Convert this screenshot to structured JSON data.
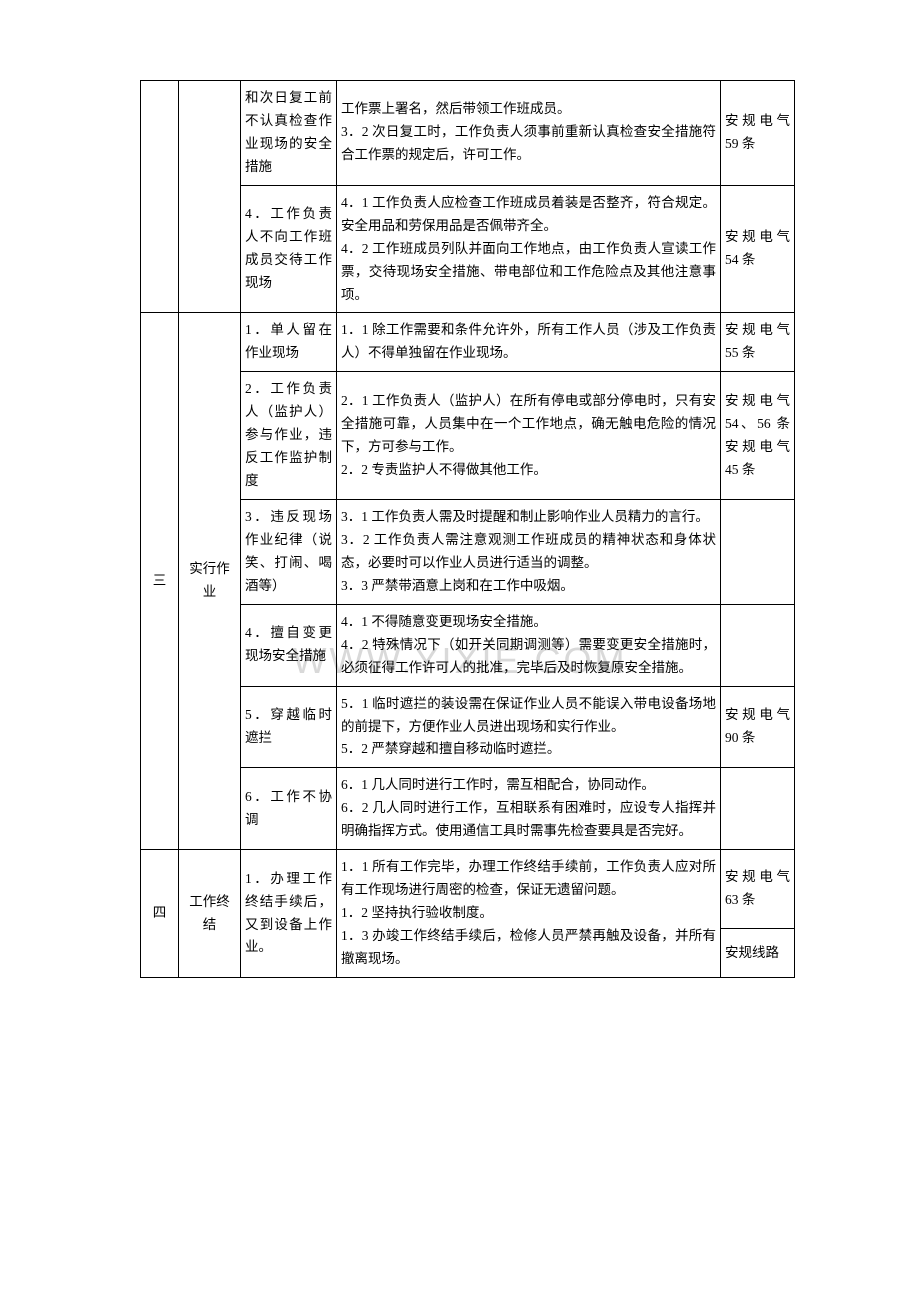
{
  "table": {
    "columns": {
      "col1_width": 38,
      "col2_width": 62,
      "col3_width": 96,
      "col5_width": 74
    },
    "border_color": "#000000",
    "font_family": "SimSun",
    "font_size": 13.5,
    "text_color": "#000000",
    "background_color": "#ffffff",
    "rows": [
      {
        "col1": "",
        "col2": "",
        "col3": "和次日复工前不认真检查作业现场的安全措施",
        "col4": "工作票上署名，然后带领工作班成员。\n3．2 次日复工时，工作负责人须事前重新认真检查安全措施符合工作票的规定后，许可工作。",
        "col5": "安规电气59 条"
      },
      {
        "col1": "",
        "col2": "",
        "col3": "4．工作负责人不向工作班成员交待工作现场",
        "col4": "4．1 工作负责人应检查工作班成员着装是否整齐，符合规定。安全用品和劳保用品是否佩带齐全。\n4．2 工作班成员列队并面向工作地点，由工作负责人宣读工作票，交待现场安全措施、带电部位和工作危险点及其他注意事项。",
        "col5": "安规电气54 条"
      },
      {
        "col1": "三",
        "col2": "实行作业",
        "col3": "1．单人留在作业现场",
        "col4": "1．1 除工作需要和条件允许外，所有工作人员（涉及工作负责人）不得单独留在作业现场。",
        "col5": "安规电气55 条"
      },
      {
        "col1": "",
        "col2": "",
        "col3": "2．工作负责人（监护人）参与作业，违反工作监护制度",
        "col4": "2．1 工作负责人（监护人）在所有停电或部分停电时，只有安全措施可靠，人员集中在一个工作地点，确无触电危险的情况下，方可参与工作。\n2．2 专责监护人不得做其他工作。",
        "col5": "安规电气54、56 条安规电气45 条"
      },
      {
        "col1": "",
        "col2": "",
        "col3": "3．违反现场作业纪律（说笑、打闹、喝酒等）",
        "col4": "3．1 工作负责人需及时提醒和制止影响作业人员精力的言行。\n3．2 工作负责人需注意观测工作班成员的精神状态和身体状态，必要时可以作业人员进行适当的调整。\n3．3 严禁带酒意上岗和在工作中吸烟。",
        "col5": ""
      },
      {
        "col1": "",
        "col2": "",
        "col3": "4．擅自变更现场安全措施",
        "col4": "4．1 不得随意变更现场安全措施。\n4．2 特殊情况下（如开关同期调测等）需要变更安全措施时，必须征得工作许可人的批准，完毕后及时恢复原安全措施。",
        "col5": ""
      },
      {
        "col1": "",
        "col2": "",
        "col3": "5．穿越临时遮拦",
        "col4": "5．1 临时遮拦的装设需在保证作业人员不能误入带电设备场地的前提下，方便作业人员进出现场和实行作业。\n5．2 严禁穿越和擅自移动临时遮拦。",
        "col5": "安规电气90 条"
      },
      {
        "col1": "",
        "col2": "",
        "col3": "6．工作不协调",
        "col4": "6．1 几人同时进行工作时，需互相配合，协同动作。\n6．2 几人同时进行工作，互相联系有困难时，应设专人指挥并明确指挥方式。使用通信工具时需事先检查要具是否完好。",
        "col5": ""
      },
      {
        "col1": "四",
        "col2": "工作终结",
        "col3": "1．办理工作终结手续后，又到设备上作业。",
        "col4": "1．1 所有工作完毕，办理工作终结手续前，工作负责人应对所有工作现场进行周密的检查，保证无遗留问题。\n1．2 坚持执行验收制度。\n1．3 办竣工作终结手续后，检修人员严禁再触及设备，并所有撤离现场。",
        "col5_a": "安规电气63 条",
        "col5_b": "安规线路"
      }
    ]
  },
  "watermark": {
    "text": "WWW.YIXIE.COM",
    "color": "rgba(180, 180, 180, 0.5)",
    "font_size": 36
  }
}
